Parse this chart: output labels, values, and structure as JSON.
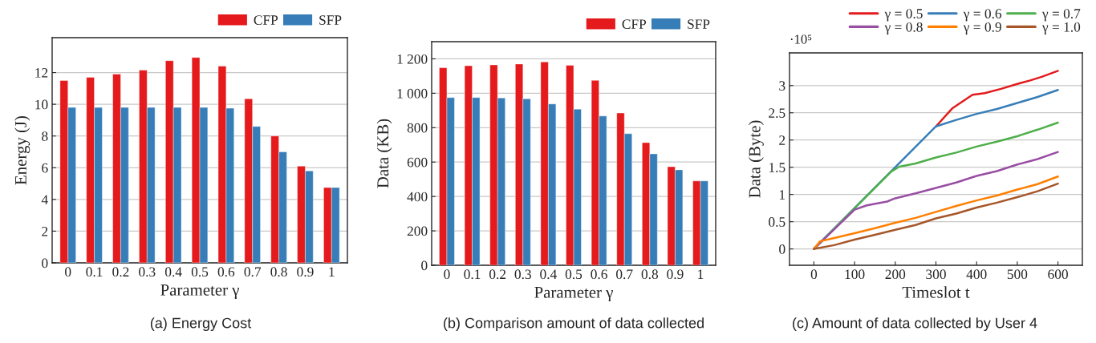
{
  "chart_data": [
    {
      "type": "bar",
      "xlabel": "Parameter γ",
      "ylabel": "Energy (J)",
      "categories": [
        "0",
        "0.1",
        "0.2",
        "0.3",
        "0.4",
        "0.5",
        "0.6",
        "0.7",
        "0.8",
        "0.9",
        "1"
      ],
      "series": [
        {
          "name": "CFP",
          "color": "#e41a1c",
          "values": [
            11.5,
            11.7,
            11.9,
            12.15,
            12.75,
            12.95,
            12.4,
            10.35,
            8.0,
            6.1,
            4.75
          ]
        },
        {
          "name": "SFP",
          "color": "#377eb8",
          "values": [
            9.8,
            9.8,
            9.8,
            9.8,
            9.8,
            9.8,
            9.75,
            8.6,
            7.0,
            5.8,
            4.75
          ]
        }
      ],
      "ylim": [
        0,
        14.2
      ],
      "yticks": [
        0,
        2,
        4,
        6,
        8,
        10,
        12
      ],
      "grid": "y",
      "legend": "top right",
      "annotations": [
        "(a) Energy Cost"
      ]
    },
    {
      "type": "bar",
      "xlabel": "Parameter γ",
      "ylabel": "Data (KB)",
      "categories": [
        "0",
        "0.1",
        "0.2",
        "0.3",
        "0.4",
        "0.5",
        "0.6",
        "0.7",
        "0.8",
        "0.9",
        "1"
      ],
      "series": [
        {
          "name": "CFP",
          "color": "#e41a1c",
          "values": [
            1148,
            1160,
            1165,
            1170,
            1182,
            1162,
            1075,
            885,
            713,
            573,
            490
          ]
        },
        {
          "name": "SFP",
          "color": "#377eb8",
          "values": [
            975,
            975,
            973,
            968,
            938,
            908,
            868,
            765,
            648,
            555,
            490
          ]
        }
      ],
      "ylim": [
        0,
        1300
      ],
      "yticks": [
        0,
        200,
        400,
        600,
        800,
        {
          "value": 1000,
          "label": "1 000"
        },
        {
          "value": 1200,
          "label": "1 200"
        }
      ],
      "grid": "y",
      "legend": "top right",
      "annotations": [
        "(b) Comparison amount of data collected"
      ]
    },
    {
      "type": "line",
      "xlabel": "Timeslot t",
      "ylabel": "Data (Byte)",
      "series": [
        {
          "name": "γ = 0.5",
          "color": "#e41a1c",
          "x": [
            300,
            340,
            390,
            420,
            460,
            500,
            530,
            560,
            600
          ],
          "values": [
            2.25,
            2.58,
            2.83,
            2.86,
            2.94,
            3.03,
            3.09,
            3.16,
            3.27
          ]
        },
        {
          "name": "γ = 0.6",
          "color": "#377eb8",
          "x": [
            0,
            300,
            350,
            400,
            450,
            500,
            550,
            600
          ],
          "values": [
            0,
            2.25,
            2.37,
            2.48,
            2.57,
            2.68,
            2.79,
            2.92
          ]
        },
        {
          "name": "γ = 0.7",
          "color": "#4daf4a",
          "x": [
            0,
            190,
            210,
            250,
            300,
            350,
            400,
            450,
            500,
            550,
            600
          ],
          "values": [
            0,
            1.42,
            1.51,
            1.57,
            1.68,
            1.77,
            1.88,
            1.97,
            2.07,
            2.19,
            2.32
          ]
        },
        {
          "name": "γ = 0.8",
          "color": "#984ea3",
          "x": [
            0,
            100,
            130,
            180,
            200,
            250,
            300,
            350,
            400,
            450,
            500,
            550,
            600
          ],
          "values": [
            0,
            0.72,
            0.8,
            0.87,
            0.93,
            1.02,
            1.12,
            1.22,
            1.34,
            1.43,
            1.55,
            1.65,
            1.78
          ]
        },
        {
          "name": "γ = 0.9",
          "color": "#ff7f00",
          "x": [
            0,
            15,
            50,
            100,
            150,
            200,
            250,
            300,
            350,
            400,
            450,
            500,
            550,
            600
          ],
          "values": [
            0,
            0.14,
            0.2,
            0.29,
            0.38,
            0.48,
            0.57,
            0.68,
            0.79,
            0.89,
            0.98,
            1.09,
            1.19,
            1.33
          ]
        },
        {
          "name": "γ = 1.0",
          "color": "#a65628",
          "x": [
            0,
            50,
            100,
            150,
            200,
            250,
            300,
            350,
            400,
            450,
            500,
            550,
            600
          ],
          "values": [
            0,
            0.07,
            0.17,
            0.26,
            0.35,
            0.44,
            0.56,
            0.65,
            0.76,
            0.85,
            0.95,
            1.06,
            1.2
          ]
        }
      ],
      "xlim": [
        -60,
        660
      ],
      "xticks": [
        0,
        100,
        200,
        300,
        400,
        500,
        600
      ],
      "ylim": [
        -0.3,
        3.6
      ],
      "yticks": [
        0,
        0.5,
        1,
        1.5,
        2,
        2.5,
        3
      ],
      "grid": "y",
      "legend": "top",
      "line_style": "solid",
      "marker": "none",
      "annotations": [
        "·10⁵",
        "(c) Amount of data collected by User 4"
      ]
    }
  ]
}
